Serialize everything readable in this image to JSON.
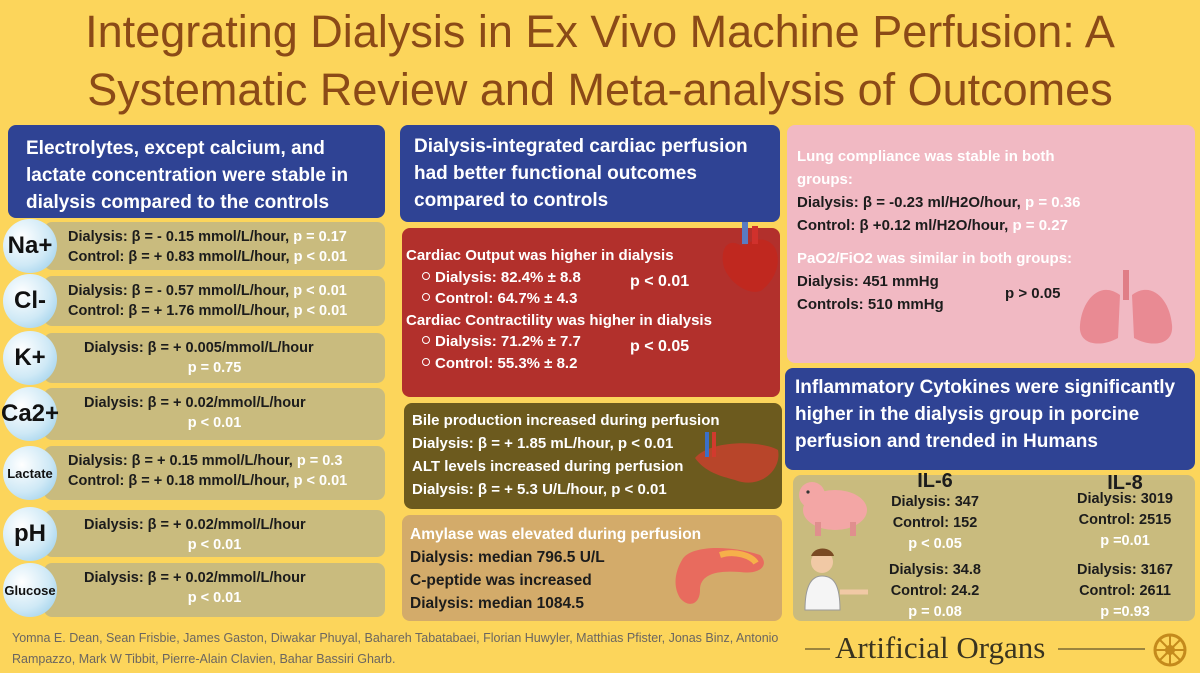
{
  "title": [
    "Integrating Dialysis in Ex Vivo Machine Perfusion: A",
    "Systematic Review and Meta-analysis of Outcomes"
  ],
  "electrolytes": {
    "heading": "Electrolytes, except calcium, and lactate concentration were stable in dialysis compared to the controls",
    "rows": [
      {
        "label": "Na+",
        "lines": [
          {
            "text": "Dialysis: β = - 0.15 mmol/L/hour,",
            "p": "p = 0.17"
          },
          {
            "text": "Control: β = + 0.83 mmol/L/hour,",
            "p": "p < 0.01"
          }
        ]
      },
      {
        "label": "Cl-",
        "lines": [
          {
            "text": "Dialysis: β = - 0.57 mmol/L/hour,",
            "p": "p < 0.01"
          },
          {
            "text": "Control: β = +  1.76 mmol/L/hour,",
            "p": "p < 0.01"
          }
        ]
      },
      {
        "label": "K+",
        "lines": [
          {
            "text": "Dialysis: β = + 0.005/mmol/L/hour"
          },
          {
            "p": "p = 0.75"
          }
        ]
      },
      {
        "label": "Ca2+",
        "lines": [
          {
            "text": "Dialysis: β = + 0.02/mmol/L/hour"
          },
          {
            "p": "p < 0.01"
          }
        ]
      },
      {
        "label": "Lactate",
        "lines": [
          {
            "text": "Dialysis: β = + 0.15 mmol/L/hour,",
            "p": "p = 0.3"
          },
          {
            "text": "Control: β = +  0.18 mmol/L/hour,",
            "p": "p < 0.01"
          }
        ]
      },
      {
        "label": "pH",
        "lines": [
          {
            "text": "Dialysis: β = + 0.02/mmol/L/hour"
          },
          {
            "p": "p < 0.01"
          }
        ]
      },
      {
        "label": "Glucose",
        "lines": [
          {
            "text": "Dialysis: β = + 0.02/mmol/L/hour"
          },
          {
            "p": "p < 0.01"
          }
        ]
      }
    ]
  },
  "cardiac": {
    "heading": "Dialysis-integrated cardiac perfusion had better functional outcomes compared to controls",
    "output": {
      "title": "Cardiac Output was higher in dialysis",
      "dialysis": "Dialysis: 82.4% ± 8.8",
      "control": "Control: 64.7% ± 4.3",
      "p": "p < 0.01"
    },
    "contractility": {
      "title": "Cardiac Contractility was higher in dialysis",
      "dialysis": "Dialysis: 71.2% ± 7.7",
      "control": "Control: 55.3% ± 8.2",
      "p": "p < 0.05"
    }
  },
  "liver": {
    "lines": [
      "Bile production increased during perfusion",
      "Dialysis: β = + 1.85 mL/hour, p < 0.01",
      "ALT levels increased during perfusion",
      "Dialysis: β = + 5.3 U/L/hour, p < 0.01"
    ]
  },
  "pancreas": {
    "lines": [
      "Amylase was elevated during perfusion",
      "Dialysis: median 796.5 U/L",
      "C-peptide was increased",
      "Dialysis: median 1084.5"
    ]
  },
  "lung": {
    "compliance_title": "Lung compliance was stable in both groups:",
    "compliance": [
      {
        "text": "Dialysis: β = -0.23 ml/H2O/hour,",
        "p": "p = 0.36"
      },
      {
        "text": "Control: β +0.12 ml/H2O/hour,",
        "p": "p = 0.27"
      }
    ],
    "pf_title": "PaO2/FiO2 was similar in both groups:",
    "pf": [
      "Dialysis: 451 mmHg",
      "Controls: 510 mmHg"
    ],
    "pf_p": "p > 0.05"
  },
  "cytokines": {
    "heading": "Inflammatory Cytokines were significantly higher in the dialysis group in porcine perfusion and trended in Humans",
    "columns": [
      "IL-6",
      "IL-8"
    ],
    "porcine": [
      [
        "Dialysis: 347",
        "Control: 152",
        "p < 0.05"
      ],
      [
        "Dialysis: 3019",
        "Control: 2515",
        "p =0.01"
      ]
    ],
    "human": [
      [
        "Dialysis: 34.8",
        "Control: 24.2",
        "p = 0.08"
      ],
      [
        "Dialysis: 3167",
        "Control: 2611",
        "p =0.93"
      ]
    ]
  },
  "authors": "Yomna E. Dean, Sean Frisbie, James Gaston, Diwakar Phuyal, Bahareh Tabatabaei, Florian Huwyler, Matthias Pfister, Jonas Binz, Antonio Rampazzo, Mark W Tibbit, Pierre-Alain Clavien, Bahar Bassiri Gharb.",
  "journal": "Artificial Organs"
}
